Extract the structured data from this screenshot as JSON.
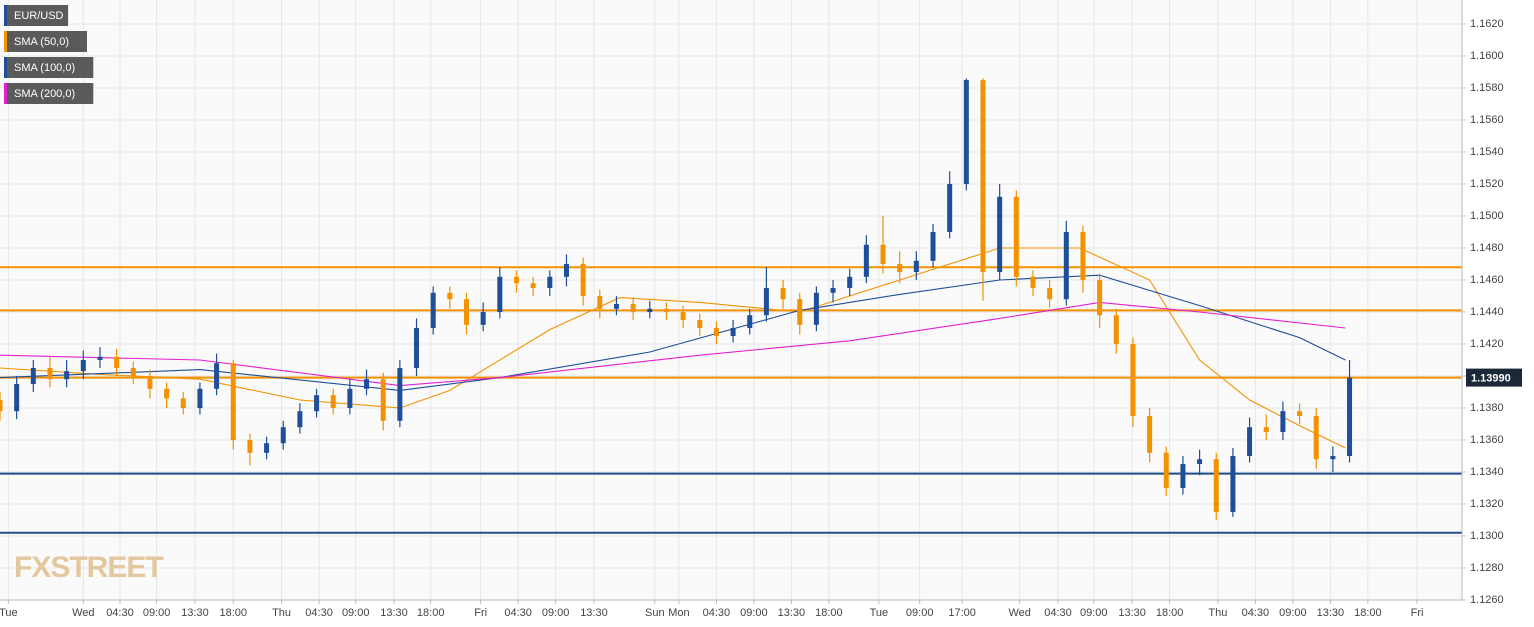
{
  "chart_data": {
    "type": "candlestick",
    "watermark": "FXSTREET",
    "xlim": [
      0,
      175.5
    ],
    "ylim": [
      1.126,
      1.1635
    ],
    "grid": true,
    "xticks": [
      {
        "value": 1,
        "label": "Tue"
      },
      {
        "value": 10,
        "label": "Wed"
      },
      {
        "value": 14.4,
        "label": "04:30"
      },
      {
        "value": 18.8,
        "label": "09:00"
      },
      {
        "value": 23.4,
        "label": "13:30"
      },
      {
        "value": 28,
        "label": "18:00"
      },
      {
        "value": 33.8,
        "label": "Thu"
      },
      {
        "value": 38.3,
        "label": "04:30"
      },
      {
        "value": 42.7,
        "label": "09:00"
      },
      {
        "value": 47.3,
        "label": "13:30"
      },
      {
        "value": 51.7,
        "label": "18:00"
      },
      {
        "value": 57.7,
        "label": "Fri"
      },
      {
        "value": 62.2,
        "label": "04:30"
      },
      {
        "value": 66.7,
        "label": "09:00"
      },
      {
        "value": 71.3,
        "label": "13:30"
      },
      {
        "value": 78.6,
        "label": "Sun"
      },
      {
        "value": 81.5,
        "label": "Mon"
      },
      {
        "value": 86,
        "label": "04:30"
      },
      {
        "value": 90.5,
        "label": "09:00"
      },
      {
        "value": 95,
        "label": "13:30"
      },
      {
        "value": 99.5,
        "label": "18:00"
      },
      {
        "value": 105.5,
        "label": "Tue"
      },
      {
        "value": 110.4,
        "label": "09:00"
      },
      {
        "value": 115.5,
        "label": "17:00"
      },
      {
        "value": 122.4,
        "label": "Wed"
      },
      {
        "value": 127,
        "label": "04:30"
      },
      {
        "value": 131.3,
        "label": "09:00"
      },
      {
        "value": 135.9,
        "label": "13:30"
      },
      {
        "value": 140.4,
        "label": "18:00"
      },
      {
        "value": 146.2,
        "label": "Thu"
      },
      {
        "value": 150.7,
        "label": "04:30"
      },
      {
        "value": 155.2,
        "label": "09:00"
      },
      {
        "value": 159.7,
        "label": "13:30"
      },
      {
        "value": 164.2,
        "label": "18:00"
      },
      {
        "value": 170.1,
        "label": "Fri"
      }
    ],
    "yticks": [
      {
        "value": 1.126,
        "label": "1.1260"
      },
      {
        "value": 1.128,
        "label": "1.1280"
      },
      {
        "value": 1.13,
        "label": "1.1300"
      },
      {
        "value": 1.132,
        "label": "1.1320"
      },
      {
        "value": 1.134,
        "label": "1.1340"
      },
      {
        "value": 1.136,
        "label": "1.1360"
      },
      {
        "value": 1.138,
        "label": "1.1380"
      },
      {
        "value": 1.14,
        "label": "1.1400"
      },
      {
        "value": 1.142,
        "label": "1.1420"
      },
      {
        "value": 1.144,
        "label": "1.1440"
      },
      {
        "value": 1.146,
        "label": "1.1460"
      },
      {
        "value": 1.148,
        "label": "1.1480"
      },
      {
        "value": 1.15,
        "label": "1.1500"
      },
      {
        "value": 1.152,
        "label": "1.1520"
      },
      {
        "value": 1.154,
        "label": "1.1540"
      },
      {
        "value": 1.156,
        "label": "1.1560"
      },
      {
        "value": 1.158,
        "label": "1.1580"
      },
      {
        "value": 1.16,
        "label": "1.1600"
      },
      {
        "value": 1.162,
        "label": "1.1620"
      }
    ],
    "series": [
      {
        "name": "EUR/USD",
        "color": "#1f4e9a",
        "down_color": "#f39200",
        "x": [
          0,
          2,
          4,
          6,
          8,
          10,
          12,
          14,
          16,
          18,
          20,
          22,
          24,
          26,
          28,
          30,
          32,
          34,
          36,
          38,
          40,
          42,
          44,
          46,
          48,
          50,
          52,
          54,
          56,
          58,
          60,
          62,
          64,
          66,
          68,
          70,
          72,
          74,
          76,
          78,
          80,
          82,
          84,
          86,
          88,
          90,
          92,
          94,
          96,
          98,
          100,
          102,
          104,
          106,
          108,
          110,
          112,
          114,
          116,
          118,
          120,
          122,
          124,
          126,
          128,
          130,
          132,
          134,
          136,
          138,
          140,
          142,
          144,
          146,
          148,
          150,
          152,
          154,
          156,
          158,
          160,
          162
        ],
        "open": [
          1.1385,
          1.1378,
          1.1395,
          1.1405,
          1.1398,
          1.1403,
          1.141,
          1.1412,
          1.1405,
          1.14,
          1.1392,
          1.1386,
          1.138,
          1.1392,
          1.1408,
          1.136,
          1.1352,
          1.1358,
          1.1368,
          1.1378,
          1.1388,
          1.138,
          1.1392,
          1.1398,
          1.1372,
          1.1405,
          1.143,
          1.1452,
          1.1448,
          1.1432,
          1.144,
          1.1462,
          1.1458,
          1.1455,
          1.1462,
          1.147,
          1.145,
          1.1442,
          1.1445,
          1.144,
          1.1442,
          1.144,
          1.1435,
          1.143,
          1.1425,
          1.143,
          1.1438,
          1.1455,
          1.1448,
          1.1432,
          1.1452,
          1.1455,
          1.1462,
          1.1482,
          1.147,
          1.1465,
          1.1472,
          1.149,
          1.152,
          1.1585,
          1.1465,
          1.1512,
          1.1462,
          1.1455,
          1.1448,
          1.149,
          1.146,
          1.1438,
          1.142,
          1.1375,
          1.1352,
          1.133,
          1.1345,
          1.1348,
          1.1315,
          1.135,
          1.1368,
          1.1365,
          1.1378,
          1.1375,
          1.1348,
          1.135
        ],
        "high": [
          1.139,
          1.14,
          1.141,
          1.1412,
          1.141,
          1.1416,
          1.1418,
          1.1417,
          1.1409,
          1.1404,
          1.1396,
          1.139,
          1.1396,
          1.1414,
          1.141,
          1.1364,
          1.1362,
          1.1372,
          1.1383,
          1.1392,
          1.1392,
          1.1398,
          1.1404,
          1.1402,
          1.141,
          1.1436,
          1.1456,
          1.1456,
          1.1452,
          1.1446,
          1.1468,
          1.1466,
          1.1462,
          1.1466,
          1.1476,
          1.1474,
          1.1454,
          1.145,
          1.1449,
          1.1447,
          1.1446,
          1.1444,
          1.1439,
          1.1434,
          1.1435,
          1.1442,
          1.1468,
          1.146,
          1.1452,
          1.1456,
          1.146,
          1.1467,
          1.1488,
          1.15,
          1.1478,
          1.1478,
          1.1495,
          1.1528,
          1.1586,
          1.1586,
          1.152,
          1.1516,
          1.1466,
          1.146,
          1.1497,
          1.1494,
          1.1464,
          1.1442,
          1.1424,
          1.138,
          1.1356,
          1.135,
          1.1354,
          1.1352,
          1.1355,
          1.1374,
          1.1376,
          1.1384,
          1.1383,
          1.138,
          1.1356,
          1.141
        ],
        "low": [
          1.1372,
          1.1373,
          1.139,
          1.1393,
          1.1393,
          1.1398,
          1.1405,
          1.14,
          1.1395,
          1.1386,
          1.138,
          1.1376,
          1.1376,
          1.1388,
          1.1354,
          1.1344,
          1.1348,
          1.1354,
          1.1364,
          1.1374,
          1.1376,
          1.1376,
          1.1388,
          1.1366,
          1.1368,
          1.14,
          1.1426,
          1.1442,
          1.1426,
          1.1428,
          1.1436,
          1.1452,
          1.145,
          1.145,
          1.1456,
          1.1444,
          1.1436,
          1.1438,
          1.1435,
          1.1436,
          1.1435,
          1.143,
          1.1425,
          1.142,
          1.1421,
          1.1426,
          1.1434,
          1.1442,
          1.1426,
          1.1428,
          1.1446,
          1.145,
          1.1458,
          1.1464,
          1.1458,
          1.146,
          1.1468,
          1.1486,
          1.1516,
          1.1447,
          1.146,
          1.1456,
          1.145,
          1.1443,
          1.1444,
          1.1452,
          1.143,
          1.1414,
          1.1368,
          1.1346,
          1.1325,
          1.1326,
          1.1338,
          1.131,
          1.1312,
          1.1346,
          1.136,
          1.136,
          1.137,
          1.1342,
          1.134,
          1.1346
        ],
        "close": [
          1.1378,
          1.1395,
          1.1405,
          1.1398,
          1.1403,
          1.141,
          1.1412,
          1.1405,
          1.14,
          1.1392,
          1.1386,
          1.138,
          1.1392,
          1.1408,
          1.136,
          1.1352,
          1.1358,
          1.1368,
          1.1378,
          1.1388,
          1.138,
          1.1392,
          1.1398,
          1.1372,
          1.1405,
          1.143,
          1.1452,
          1.1448,
          1.1432,
          1.144,
          1.1462,
          1.1458,
          1.1455,
          1.1462,
          1.147,
          1.145,
          1.1442,
          1.1445,
          1.144,
          1.1442,
          1.144,
          1.1435,
          1.143,
          1.1425,
          1.143,
          1.1438,
          1.1455,
          1.1448,
          1.1432,
          1.1452,
          1.1455,
          1.1462,
          1.1482,
          1.147,
          1.1465,
          1.1472,
          1.149,
          1.152,
          1.1585,
          1.1465,
          1.1512,
          1.1462,
          1.1455,
          1.1448,
          1.149,
          1.146,
          1.1438,
          1.142,
          1.1375,
          1.1352,
          1.133,
          1.1345,
          1.1348,
          1.1315,
          1.135,
          1.1368,
          1.1365,
          1.1378,
          1.1375,
          1.1348,
          1.135,
          1.1399
        ]
      }
    ],
    "overlays": [
      {
        "name": "SMA (50,0)",
        "color": "#f39200",
        "x": [
          0,
          12,
          24,
          36,
          48,
          54,
          66,
          74.4,
          84,
          96,
          108,
          120,
          129.6,
          138,
          144,
          150,
          156,
          161.5
        ],
        "values": [
          1.1405,
          1.1401,
          1.1398,
          1.1385,
          1.138,
          1.1391,
          1.1429,
          1.1449,
          1.1446,
          1.144,
          1.146,
          1.148,
          1.148,
          1.146,
          1.141,
          1.1385,
          1.1369,
          1.1355
        ]
      },
      {
        "name": "SMA (100,0)",
        "color": "#1f4e9a",
        "x": [
          0,
          24,
          48,
          60,
          78,
          96,
          108,
          120,
          132,
          144,
          156,
          161.5
        ],
        "values": [
          1.1399,
          1.1404,
          1.1391,
          1.1399,
          1.1415,
          1.1441,
          1.1451,
          1.146,
          1.1463,
          1.1444,
          1.1424,
          1.141
        ]
      },
      {
        "name": "SMA (200,0)",
        "color": "#e020d0",
        "x": [
          0,
          24,
          48,
          60,
          84,
          102,
          120,
          132,
          144,
          161.5
        ],
        "values": [
          1.1413,
          1.141,
          1.1394,
          1.1399,
          1.1413,
          1.1422,
          1.1436,
          1.1446,
          1.144,
          1.143
        ]
      }
    ],
    "levels": [
      {
        "value": 1.1468,
        "color": "#f39200"
      },
      {
        "value": 1.1441,
        "color": "#f39200"
      },
      {
        "value": 1.1399,
        "color": "#f39200"
      },
      {
        "value": 1.1339,
        "color": "#1f4e8c"
      },
      {
        "value": 1.1302,
        "color": "#1f4e8c"
      }
    ],
    "last_price": {
      "value": 1.1399,
      "label": "1.13990"
    }
  }
}
